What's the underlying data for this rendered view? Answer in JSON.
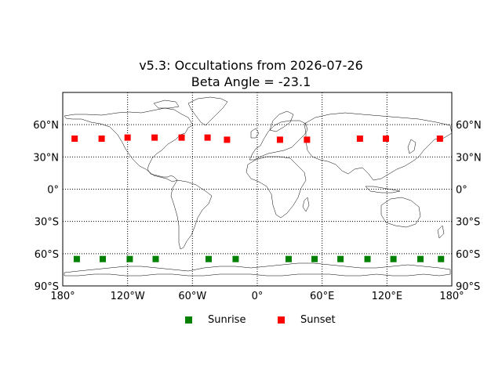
{
  "title": {
    "line1": "v5.3: Occultations from 2026-07-26",
    "line2": "Beta Angle = -23.1"
  },
  "colors": {
    "sunrise": "#008000",
    "sunset": "#ff0000",
    "coast": "#000000",
    "grid": "#000000"
  },
  "axes": {
    "xlim": [
      -180,
      180
    ],
    "ylim": [
      -90,
      90
    ],
    "x_ticks": [
      {
        "value": -180,
        "label": "180°"
      },
      {
        "value": -120,
        "label": "120°W"
      },
      {
        "value": -60,
        "label": "60°W"
      },
      {
        "value": 0,
        "label": "0°"
      },
      {
        "value": 60,
        "label": "60°E"
      },
      {
        "value": 120,
        "label": "120°E"
      },
      {
        "value": 180,
        "label": "180°"
      }
    ],
    "y_ticks": [
      {
        "value": 60,
        "label": "60°N"
      },
      {
        "value": 30,
        "label": "30°N"
      },
      {
        "value": 0,
        "label": "0°"
      },
      {
        "value": -30,
        "label": "30°S"
      },
      {
        "value": -60,
        "label": "60°S"
      },
      {
        "value": -90,
        "label": "90°S"
      }
    ],
    "grid": "dotted"
  },
  "chart_data": {
    "type": "scatter",
    "series": [
      {
        "name": "Sunrise",
        "marker": "square",
        "color": "#008000",
        "points": [
          {
            "lon": -167,
            "lat": -65
          },
          {
            "lon": -143,
            "lat": -65
          },
          {
            "lon": -118,
            "lat": -65
          },
          {
            "lon": -94,
            "lat": -65
          },
          {
            "lon": -45,
            "lat": -65
          },
          {
            "lon": -20,
            "lat": -65
          },
          {
            "lon": 29,
            "lat": -65
          },
          {
            "lon": 53,
            "lat": -65
          },
          {
            "lon": 77,
            "lat": -65
          },
          {
            "lon": 102,
            "lat": -65
          },
          {
            "lon": 126,
            "lat": -65
          },
          {
            "lon": 151,
            "lat": -65
          },
          {
            "lon": 170,
            "lat": -65
          }
        ]
      },
      {
        "name": "Sunset",
        "marker": "square",
        "color": "#ff0000",
        "points": [
          {
            "lon": -169,
            "lat": 47
          },
          {
            "lon": -144,
            "lat": 47
          },
          {
            "lon": -120,
            "lat": 48
          },
          {
            "lon": -95,
            "lat": 48
          },
          {
            "lon": -70,
            "lat": 48
          },
          {
            "lon": -46,
            "lat": 48
          },
          {
            "lon": -28,
            "lat": 46
          },
          {
            "lon": 21,
            "lat": 46
          },
          {
            "lon": 46,
            "lat": 46
          },
          {
            "lon": 95,
            "lat": 47
          },
          {
            "lon": 119,
            "lat": 47
          },
          {
            "lon": 169,
            "lat": 47
          }
        ]
      }
    ],
    "xlim": [
      -180,
      180
    ],
    "ylim": [
      -90,
      90
    ],
    "legend": "bottom-center"
  },
  "legend": {
    "items": [
      {
        "label": "Sunrise",
        "color": "#008000"
      },
      {
        "label": "Sunset",
        "color": "#ff0000"
      }
    ]
  }
}
